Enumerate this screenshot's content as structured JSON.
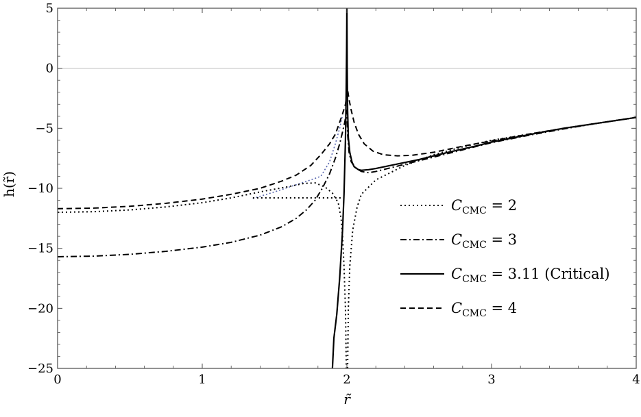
{
  "chart_data": {
    "type": "line",
    "title": "",
    "xlabel": "r̃",
    "ylabel": "h(r̃)",
    "xlim": [
      0,
      4
    ],
    "ylim": [
      -25,
      5
    ],
    "x_ticks": [
      0,
      1,
      2,
      3,
      4
    ],
    "x_tick_labels": [
      "0",
      "1",
      "2",
      "3",
      "4"
    ],
    "y_ticks": [
      5,
      0,
      -5,
      -10,
      -15,
      -20,
      -25
    ],
    "y_tick_labels": [
      "5",
      "0",
      "−5",
      "−10",
      "−15",
      "−20",
      "−25"
    ],
    "grid": false,
    "reference_line_y": 0,
    "legend_position": "right",
    "series": [
      {
        "name": "CCMC = 2",
        "legend_symbol": "C",
        "legend_subscript": "CMC",
        "legend_value": " = 2",
        "style": "dotted",
        "points": [
          [
            0,
            -12.0
          ],
          [
            0.25,
            -11.95
          ],
          [
            0.5,
            -11.8
          ],
          [
            0.75,
            -11.55
          ],
          [
            1.0,
            -11.2
          ],
          [
            1.2,
            -10.8
          ],
          [
            1.4,
            -10.3
          ],
          [
            1.6,
            -9.85
          ],
          [
            1.7,
            -9.6
          ],
          [
            1.78,
            -9.55
          ],
          [
            1.85,
            -9.9
          ],
          [
            1.9,
            -10.4
          ],
          [
            1.94,
            -11.2
          ],
          [
            1.96,
            -12.5
          ],
          [
            1.97,
            -14.0
          ],
          [
            1.98,
            -16.5
          ],
          [
            1.99,
            -20.0
          ],
          [
            1.996,
            -25.0
          ]
        ],
        "branch2": [
          [
            2.005,
            -25.0
          ],
          [
            2.01,
            -20.0
          ],
          [
            2.02,
            -16.5
          ],
          [
            2.04,
            -13.5
          ],
          [
            2.07,
            -11.6
          ],
          [
            2.1,
            -10.5
          ],
          [
            2.2,
            -9.3
          ],
          [
            2.4,
            -8.1
          ],
          [
            2.6,
            -7.2
          ],
          [
            2.8,
            -6.55
          ],
          [
            3.0,
            -6.0
          ],
          [
            3.25,
            -5.5
          ],
          [
            3.5,
            -5.0
          ],
          [
            3.75,
            -4.55
          ],
          [
            4.0,
            -4.1
          ]
        ],
        "flat_branch": [
          [
            1.35,
            -10.8
          ],
          [
            1.98,
            -10.8
          ]
        ]
      },
      {
        "name": "CCMC = 3",
        "legend_symbol": "C",
        "legend_subscript": "CMC",
        "legend_value": " = 3",
        "style": "dashdot",
        "points": [
          [
            0,
            -15.7
          ],
          [
            0.25,
            -15.65
          ],
          [
            0.5,
            -15.5
          ],
          [
            0.75,
            -15.25
          ],
          [
            1.0,
            -14.9
          ],
          [
            1.2,
            -14.5
          ],
          [
            1.4,
            -13.9
          ],
          [
            1.55,
            -13.2
          ],
          [
            1.65,
            -12.5
          ],
          [
            1.72,
            -11.8
          ],
          [
            1.78,
            -11.0
          ],
          [
            1.83,
            -10.0
          ],
          [
            1.88,
            -8.8
          ],
          [
            1.92,
            -7.5
          ],
          [
            1.95,
            -6.3
          ],
          [
            1.97,
            -5.3
          ],
          [
            1.985,
            -4.5
          ],
          [
            1.995,
            -3.8
          ],
          [
            2.0,
            -3.5
          ],
          [
            2.005,
            -5.5
          ],
          [
            2.015,
            -7.0
          ],
          [
            2.03,
            -7.8
          ],
          [
            2.06,
            -8.3
          ],
          [
            2.1,
            -8.6
          ],
          [
            2.15,
            -8.7
          ],
          [
            2.2,
            -8.6
          ],
          [
            2.3,
            -8.3
          ],
          [
            2.5,
            -7.7
          ],
          [
            2.7,
            -7.1
          ],
          [
            2.9,
            -6.5
          ],
          [
            3.0,
            -6.2
          ],
          [
            3.25,
            -5.6
          ],
          [
            3.5,
            -5.05
          ],
          [
            3.75,
            -4.55
          ],
          [
            4.0,
            -4.1
          ]
        ]
      },
      {
        "name": "CCMC = 3.11 (Critical)",
        "legend_symbol": "C",
        "legend_subscript": "CMC",
        "legend_value": " = 3.11 (Critical)",
        "style": "solid",
        "points": [
          [
            1.9,
            -25.0
          ],
          [
            1.91,
            -22.5
          ],
          [
            1.93,
            -20.5
          ],
          [
            1.95,
            -17.5
          ],
          [
            1.97,
            -13.5
          ],
          [
            1.98,
            -10.5
          ],
          [
            1.99,
            -6.0
          ],
          [
            1.995,
            -2.0
          ],
          [
            1.998,
            1.5
          ],
          [
            2.0,
            5.0
          ]
        ],
        "branch2": [
          [
            2.0,
            5.0
          ],
          [
            2.002,
            0.0
          ],
          [
            2.005,
            -3.5
          ],
          [
            2.01,
            -5.8
          ],
          [
            2.02,
            -7.0
          ],
          [
            2.035,
            -7.8
          ],
          [
            2.05,
            -8.2
          ],
          [
            2.08,
            -8.45
          ],
          [
            2.1,
            -8.5
          ],
          [
            2.15,
            -8.45
          ],
          [
            2.2,
            -8.35
          ],
          [
            2.3,
            -8.1
          ],
          [
            2.5,
            -7.6
          ],
          [
            2.7,
            -7.0
          ],
          [
            2.9,
            -6.45
          ],
          [
            3.0,
            -6.15
          ],
          [
            3.25,
            -5.55
          ],
          [
            3.5,
            -5.0
          ],
          [
            3.75,
            -4.55
          ],
          [
            4.0,
            -4.1
          ]
        ]
      },
      {
        "name": "CCMC = 4",
        "legend_symbol": "C",
        "legend_subscript": "CMC",
        "legend_value": " = 4",
        "style": "dashed",
        "points": [
          [
            0,
            -11.7
          ],
          [
            0.25,
            -11.65
          ],
          [
            0.5,
            -11.5
          ],
          [
            0.75,
            -11.25
          ],
          [
            1.0,
            -10.9
          ],
          [
            1.2,
            -10.5
          ],
          [
            1.4,
            -10.0
          ],
          [
            1.55,
            -9.4
          ],
          [
            1.65,
            -8.9
          ],
          [
            1.75,
            -8.1
          ],
          [
            1.82,
            -7.2
          ],
          [
            1.88,
            -6.3
          ],
          [
            1.92,
            -5.5
          ],
          [
            1.95,
            -4.5
          ],
          [
            1.97,
            -3.8
          ],
          [
            1.99,
            -3.0
          ],
          [
            2.0,
            -2.2
          ],
          [
            2.005,
            -1.8
          ],
          [
            2.015,
            -2.6
          ],
          [
            2.03,
            -3.5
          ],
          [
            2.05,
            -4.5
          ],
          [
            2.08,
            -5.5
          ],
          [
            2.12,
            -6.3
          ],
          [
            2.18,
            -6.9
          ],
          [
            2.25,
            -7.2
          ],
          [
            2.35,
            -7.3
          ],
          [
            2.45,
            -7.25
          ],
          [
            2.6,
            -7.0
          ],
          [
            2.8,
            -6.5
          ],
          [
            3.0,
            -6.05
          ],
          [
            3.25,
            -5.5
          ],
          [
            3.5,
            -5.0
          ],
          [
            3.75,
            -4.55
          ],
          [
            4.0,
            -4.1
          ]
        ]
      }
    ],
    "faint_blue_trace": [
      [
        1.35,
        -10.85
      ],
      [
        1.5,
        -10.3
      ],
      [
        1.65,
        -9.7
      ],
      [
        1.75,
        -9.3
      ],
      [
        1.82,
        -9.0
      ],
      [
        1.88,
        -7.8
      ],
      [
        1.92,
        -6.3
      ],
      [
        1.95,
        -5.0
      ],
      [
        1.97,
        -3.9
      ]
    ],
    "colors": {
      "series": "#000000",
      "zero_line": "#bdbdbd",
      "frame": "#4a4a4a",
      "faint_trace": "#3a4aa0"
    }
  }
}
